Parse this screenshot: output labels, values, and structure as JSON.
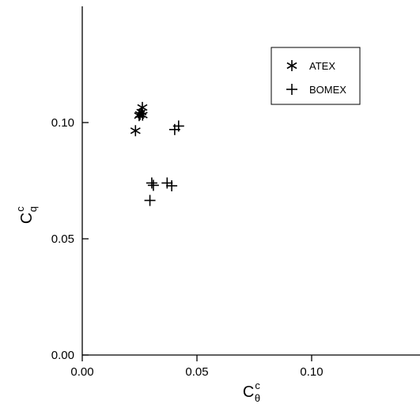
{
  "chart_data": {
    "type": "scatter",
    "title": "",
    "xlabel": {
      "main": "C",
      "sup": "c",
      "sub": "θ"
    },
    "ylabel": {
      "main": "C",
      "sup": "c",
      "sub": "q"
    },
    "xlim": [
      0.0,
      0.15
    ],
    "ylim": [
      0.0,
      0.15
    ],
    "xticks": [
      {
        "value": 0.0,
        "label": "0.00"
      },
      {
        "value": 0.05,
        "label": "0.05"
      },
      {
        "value": 0.1,
        "label": "0.10"
      }
    ],
    "yticks": [
      {
        "value": 0.0,
        "label": "0.00"
      },
      {
        "value": 0.05,
        "label": "0.05"
      },
      {
        "value": 0.1,
        "label": "0.10"
      }
    ],
    "grid": false,
    "legend_position": "top-right",
    "series": [
      {
        "name": "ATEX",
        "marker": "asterisk",
        "points": [
          {
            "x": 0.0262,
            "y": 0.1065
          },
          {
            "x": 0.0258,
            "y": 0.1045
          },
          {
            "x": 0.0252,
            "y": 0.1035
          },
          {
            "x": 0.0248,
            "y": 0.103
          },
          {
            "x": 0.0263,
            "y": 0.1032
          },
          {
            "x": 0.0232,
            "y": 0.0965
          }
        ]
      },
      {
        "name": "BOMEX",
        "marker": "plus",
        "points": [
          {
            "x": 0.042,
            "y": 0.0985
          },
          {
            "x": 0.0403,
            "y": 0.097
          },
          {
            "x": 0.0303,
            "y": 0.074
          },
          {
            "x": 0.031,
            "y": 0.073
          },
          {
            "x": 0.037,
            "y": 0.074
          },
          {
            "x": 0.039,
            "y": 0.0728
          },
          {
            "x": 0.0295,
            "y": 0.0665
          }
        ]
      }
    ]
  }
}
